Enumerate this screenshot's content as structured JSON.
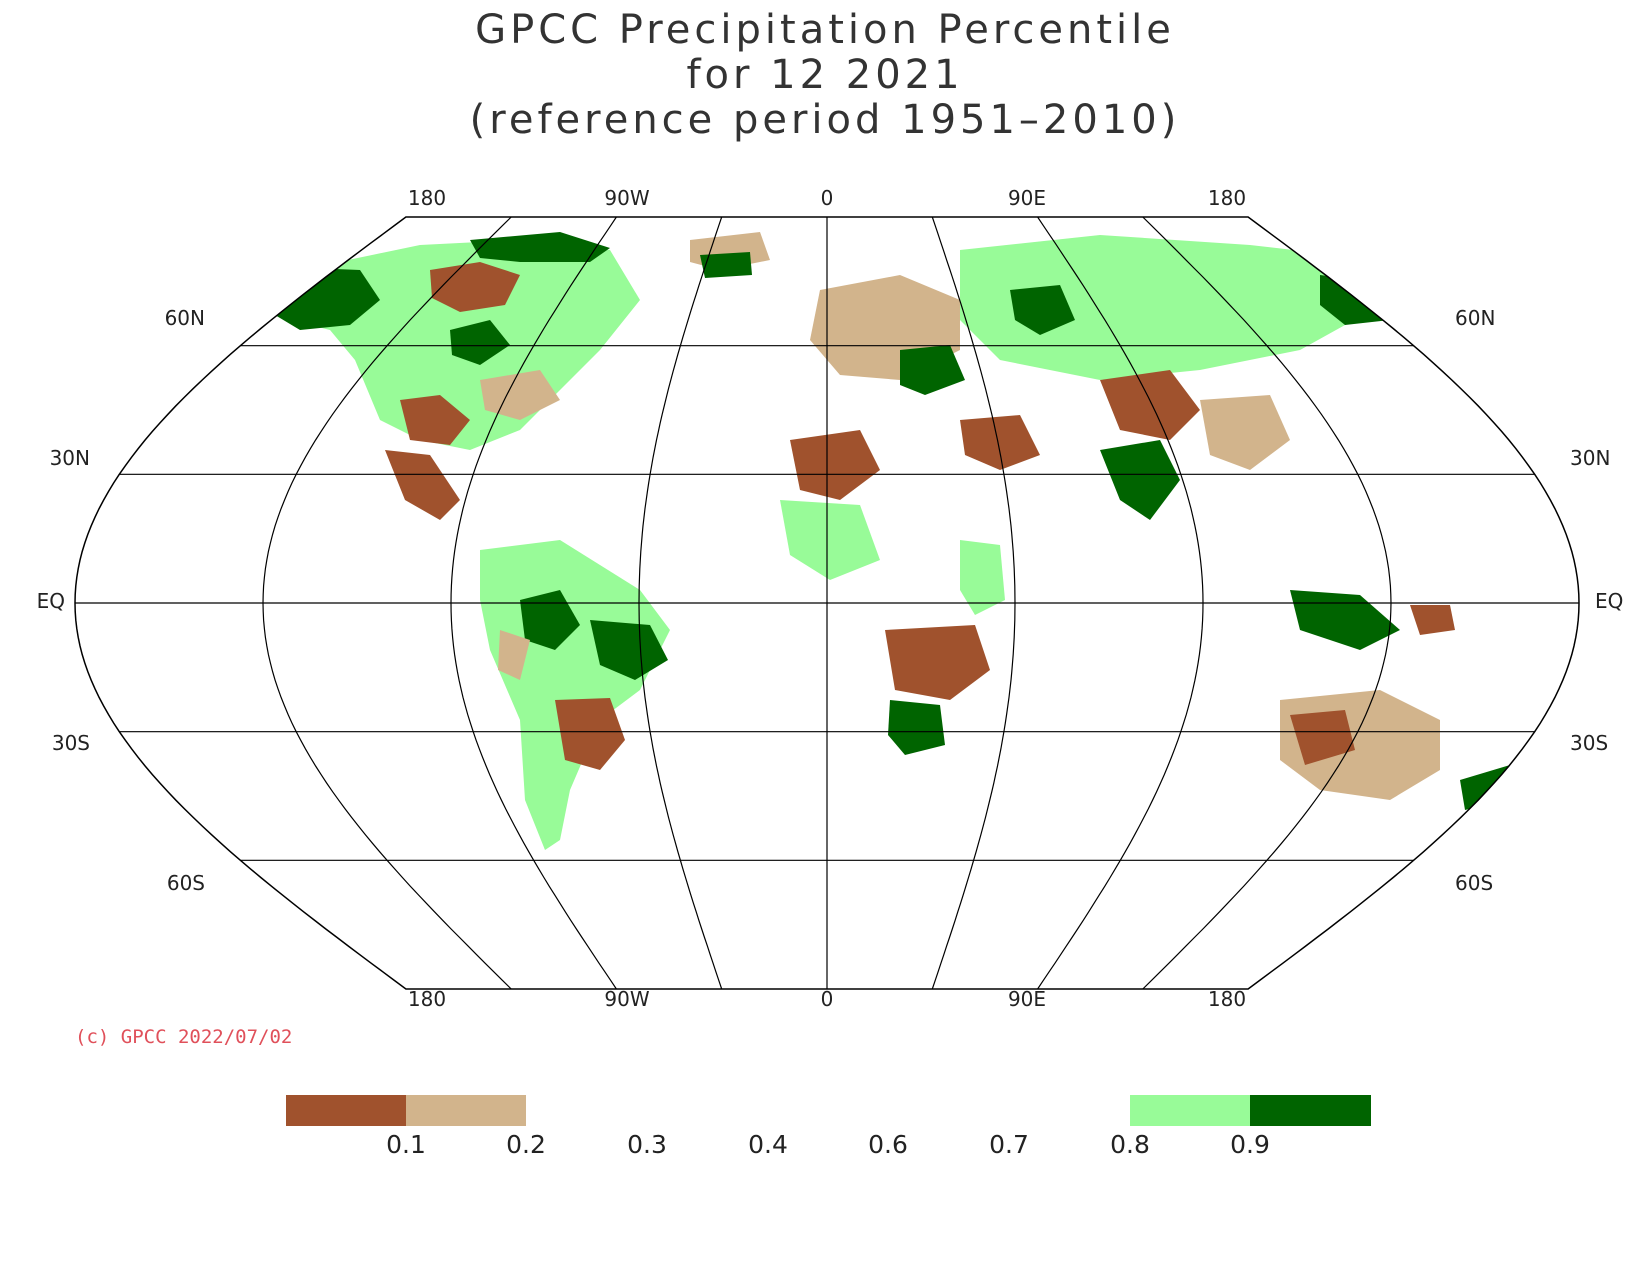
{
  "title": {
    "line1": "GPCC Precipitation Percentile",
    "line2": "for 12 2021",
    "line3": "(reference period 1951–2010)"
  },
  "copyright": "(c) GPCC 2022/07/02",
  "map": {
    "projection": "Robinson-like (pseudocylindrical)",
    "central_longitude": 30,
    "top_lon_labels": [
      "180",
      "90W",
      "0",
      "90E",
      "180"
    ],
    "bottom_lon_labels": [
      "180",
      "90W",
      "0",
      "90E",
      "180"
    ],
    "lat_labels_left": [
      "60N",
      "30N",
      "EQ",
      "30S",
      "60S"
    ],
    "lat_labels_right": [
      "60N",
      "30N",
      "EQ",
      "30S",
      "60S"
    ]
  },
  "legend": {
    "labels": [
      "0.1",
      "0.2",
      "0.3",
      "0.4",
      "0.6",
      "0.7",
      "0.8",
      "0.9"
    ],
    "colors": {
      "below_0_1": "#a0522d",
      "0_1_to_0_2": "#d2b48c",
      "0_8_to_0_9": "#98fb98",
      "above_0_9": "#006400"
    }
  },
  "colors": {
    "very_dry": "#a0522d",
    "dry": "#d2b48c",
    "wet": "#98fb98",
    "very_wet": "#006400",
    "title": "#333333",
    "copyright": "#e0505a"
  }
}
